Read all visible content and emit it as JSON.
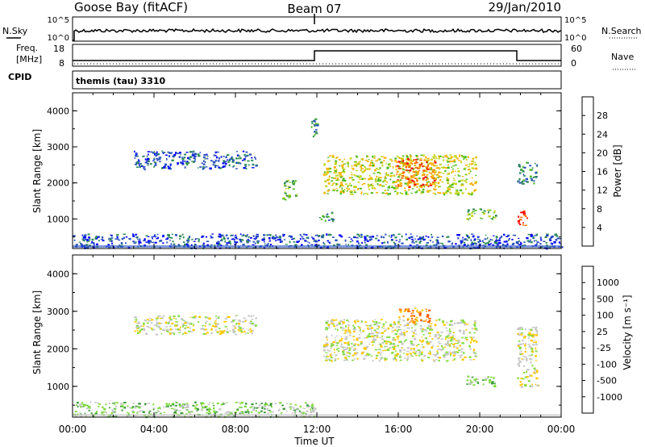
{
  "header": {
    "station": "Goose Bay (fitACF)",
    "beam": "Beam 07",
    "date": "29/Jan/2010"
  },
  "panels": {
    "nsky_label": "N.Sky",
    "nsearch_label": "N.Search",
    "freq_label_1": "Freq.",
    "freq_label_2": "[MHz]",
    "nave_label": "Nave",
    "cpid_label": "CPID",
    "cpid_text": "themis (tau) 3310",
    "nsky_ticks": [
      "10^5",
      "10^0"
    ],
    "nsearch_ticks": [
      "10^5",
      "10^0"
    ],
    "freq_ticks": [
      "18",
      "8"
    ],
    "nave_ticks": [
      "60",
      "0"
    ]
  },
  "colors": {
    "power": [
      "#0000ff",
      "#2a52be",
      "#2e8b57",
      "#4cbb17",
      "#c5d41a",
      "#ffb000",
      "#ff6a00",
      "#ff0000"
    ],
    "velocity": [
      "#ff0000",
      "#ff5a00",
      "#ff9a1a",
      "#ffc800",
      "#c8c8c8",
      "#7fdc3a",
      "#3a9a3a",
      "#2a4aa0",
      "#1a1aff"
    ]
  },
  "chart_data": [
    {
      "type": "heatmap",
      "name": "power",
      "ylabel": "Slant Range [km]",
      "xlabel": "",
      "x_ticks": [
        "00:00",
        "04:00",
        "08:00",
        "12:00",
        "16:00",
        "20:00",
        "00:00"
      ],
      "y_ticks": [
        "1000",
        "2000",
        "3000",
        "4000"
      ],
      "xlim_hours": [
        0,
        24
      ],
      "ylim_km": [
        180,
        4500
      ],
      "colorbar_label": "Power [dB]",
      "colorbar_ticks": [
        "4",
        "8",
        "12",
        "16",
        "20",
        "24",
        "28"
      ],
      "regions": [
        {
          "t": [
            3.0,
            9.0
          ],
          "r": [
            2400,
            2900
          ],
          "level": 1
        },
        {
          "t": [
            10.3,
            11.0
          ],
          "r": [
            1550,
            2100
          ],
          "level": 3
        },
        {
          "t": [
            11.7,
            12.0
          ],
          "r": [
            3300,
            3800
          ],
          "level": 2
        },
        {
          "t": [
            12.1,
            12.8
          ],
          "r": [
            950,
            1200
          ],
          "level": 2
        },
        {
          "t": [
            12.3,
            19.8
          ],
          "r": [
            1700,
            2800
          ],
          "level": 4
        },
        {
          "t": [
            15.8,
            17.8
          ],
          "r": [
            1900,
            2700
          ],
          "level": 6
        },
        {
          "t": [
            19.3,
            20.8
          ],
          "r": [
            1000,
            1300
          ],
          "level": 3
        },
        {
          "t": [
            21.8,
            22.3
          ],
          "r": [
            800,
            1300
          ],
          "level": 7
        },
        {
          "t": [
            21.8,
            22.8
          ],
          "r": [
            2000,
            2600
          ],
          "level": 2
        },
        {
          "t": [
            0.0,
            24.0
          ],
          "r": [
            200,
            600
          ],
          "level": 1
        }
      ]
    },
    {
      "type": "heatmap",
      "name": "velocity",
      "ylabel": "Slant Range [km]",
      "xlabel": "Time UT",
      "x_ticks": [
        "00:00",
        "04:00",
        "08:00",
        "12:00",
        "16:00",
        "20:00",
        "00:00"
      ],
      "y_ticks": [
        "1000",
        "2000",
        "3000",
        "4000"
      ],
      "xlim_hours": [
        0,
        24
      ],
      "ylim_km": [
        180,
        4500
      ],
      "colorbar_label": "Velocity [m s⁻¹]",
      "colorbar_ticks": [
        "1000",
        "500",
        "100",
        "25",
        "-25",
        "-100",
        "-500",
        "-1000"
      ],
      "regions": [
        {
          "t": [
            3.0,
            9.0
          ],
          "r": [
            2400,
            2900
          ],
          "level": 4
        },
        {
          "t": [
            12.3,
            19.8
          ],
          "r": [
            1700,
            2800
          ],
          "level": 4
        },
        {
          "t": [
            16.0,
            17.5
          ],
          "r": [
            2700,
            3100
          ],
          "level": 2
        },
        {
          "t": [
            19.3,
            20.8
          ],
          "r": [
            1000,
            1300
          ],
          "level": 5
        },
        {
          "t": [
            21.8,
            22.8
          ],
          "r": [
            1000,
            2600
          ],
          "level": 4
        },
        {
          "t": [
            0.0,
            12.0
          ],
          "r": [
            200,
            600
          ],
          "level": 5
        }
      ]
    }
  ]
}
